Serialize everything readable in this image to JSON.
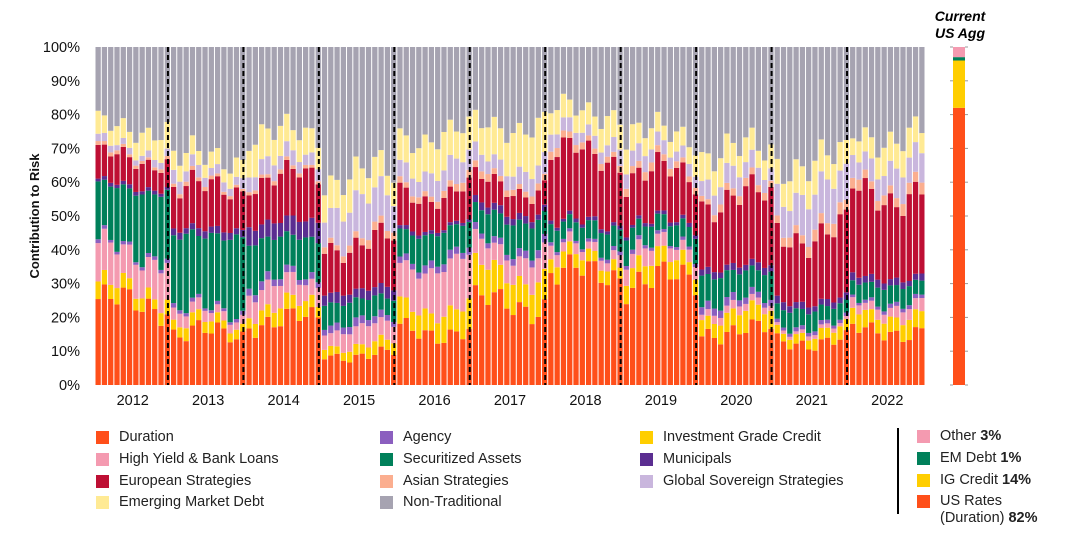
{
  "chart_data": {
    "type": "bar",
    "stacked": true,
    "ylabel": "Contribution to Risk",
    "yticks": [
      "0%",
      "10%",
      "20%",
      "30%",
      "40%",
      "50%",
      "60%",
      "70%",
      "80%",
      "90%",
      "100%"
    ],
    "ylim": [
      0,
      100
    ],
    "years": [
      "2012",
      "2013",
      "2014",
      "2015",
      "2016",
      "2017",
      "2018",
      "2019",
      "2020",
      "2021",
      "2022"
    ],
    "months_per_year": 12,
    "series": [
      {
        "name": "Duration",
        "color": "#FF4F1A",
        "yearly": [
          24,
          15,
          19,
          9,
          16,
          24,
          33,
          31,
          16,
          13,
          16
        ]
      },
      {
        "name": "Investment Grade Credit",
        "color": "#FFCE00",
        "yearly": [
          4,
          3,
          4,
          3,
          7,
          9,
          4,
          5,
          5,
          3,
          5
        ]
      },
      {
        "name": "High Yield & Bank Loans",
        "color": "#F49AB0",
        "yearly": [
          11,
          3,
          6,
          5,
          13,
          7,
          3,
          4,
          2,
          1,
          3
        ]
      },
      {
        "name": "Agency",
        "color": "#8B5FBF",
        "yearly": [
          1,
          1,
          2,
          2,
          2,
          2,
          1,
          1,
          2,
          1,
          1
        ]
      },
      {
        "name": "Securitized Assets",
        "color": "#00805A",
        "yearly": [
          18,
          22,
          12,
          6,
          8,
          8,
          6,
          6,
          8,
          5,
          5
        ]
      },
      {
        "name": "Municipals",
        "color": "#5B2E91",
        "yearly": [
          1,
          2,
          5,
          3,
          1,
          2,
          1,
          1,
          2,
          2,
          2
        ]
      },
      {
        "name": "European Strategies",
        "color": "#BE0F34",
        "yearly": [
          8,
          12,
          13,
          14,
          10,
          7,
          20,
          14,
          20,
          20,
          25
        ]
      },
      {
        "name": "Asian Strategies",
        "color": "#FBAE8F",
        "yearly": [
          1,
          1,
          1,
          2,
          2,
          2,
          2,
          2,
          2,
          3,
          3
        ]
      },
      {
        "name": "Global Sovereign Strategies",
        "color": "#C9B6DD",
        "yearly": [
          2,
          3,
          4,
          10,
          6,
          5,
          4,
          4,
          5,
          10,
          7
        ]
      },
      {
        "name": "Emerging Market Debt",
        "color": "#FFEA94",
        "yearly": [
          6,
          5,
          8,
          8,
          9,
          11,
          7,
          6,
          7,
          8,
          7
        ]
      },
      {
        "name": "Non-Traditional",
        "color": "#A6A3B1",
        "yearly": [
          24,
          33,
          26,
          38,
          26,
          23,
          19,
          26,
          31,
          34,
          26
        ]
      }
    ],
    "current_us_agg": {
      "title_line1": "Current",
      "title_line2": "US Agg",
      "segments": [
        {
          "name": "US Rates (Duration)",
          "value": 82,
          "color": "#FF4F1A"
        },
        {
          "name": "IG Credit",
          "value": 14,
          "color": "#FFCE00"
        },
        {
          "name": "EM Debt",
          "value": 1,
          "color": "#00805A"
        },
        {
          "name": "Other",
          "value": 3,
          "color": "#F49AB0"
        }
      ]
    }
  },
  "legend": {
    "col1": [
      "Duration",
      "High Yield & Bank Loans",
      "European Strategies",
      "Emerging Market Debt"
    ],
    "col2": [
      "Agency",
      "Securitized Assets",
      "Asian Strategies",
      "Non-Traditional"
    ],
    "col3": [
      "Investment Grade Credit",
      "Municipals",
      "Global Sovereign Strategies"
    ]
  },
  "side_legend": {
    "other_label": "Other",
    "other_value": "3%",
    "em_label": "EM Debt",
    "em_value": "1%",
    "ig_label": "IG Credit",
    "ig_value": "14%",
    "rates_label": "US Rates",
    "rates_label2": "(Duration)",
    "rates_value": "82%"
  }
}
